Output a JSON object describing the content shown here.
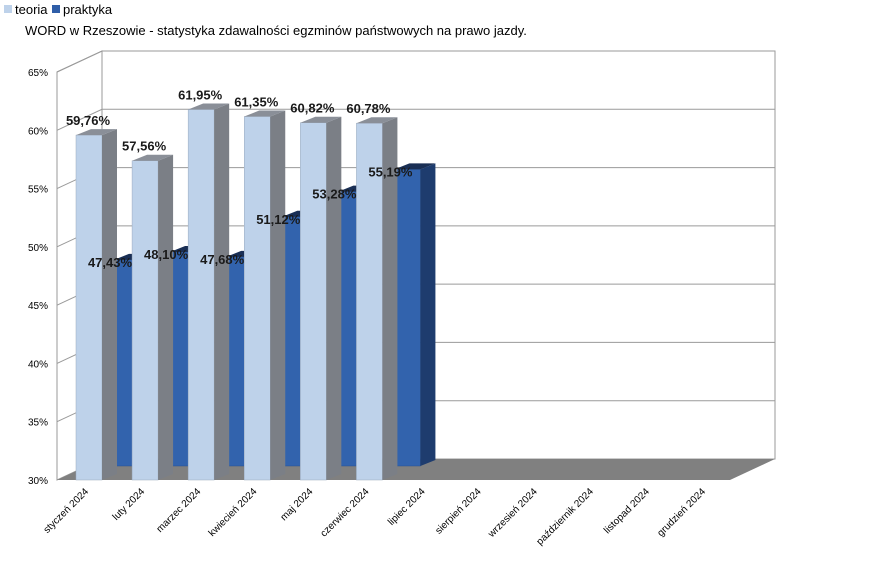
{
  "chart_data": {
    "type": "bar",
    "title": "WORD w Rzeszowie - statystyka zdawalności egzminów państwowych na prawo jazdy.",
    "categories": [
      "styczeń 2024",
      "luty 2024",
      "marzec 2024",
      "kwiecień 2024",
      "maj 2024",
      "czerwiec 2024",
      "lipiec 2024",
      "sierpień 2024",
      "wrzesień 2024",
      "październik 2024",
      "listopad 2024",
      "grudzień 2024"
    ],
    "series": [
      {
        "name": "teoria",
        "color": "#bed2ea",
        "values": [
          59.76,
          57.56,
          61.95,
          61.35,
          60.82,
          60.78,
          null,
          null,
          null,
          null,
          null,
          null
        ],
        "labels": [
          "59,76%",
          "57,56%",
          "61,95%",
          "61,35%",
          "60,82%",
          "60,78%"
        ]
      },
      {
        "name": "praktyka",
        "color": "#2f5ea8",
        "values": [
          47.43,
          48.1,
          47.68,
          51.12,
          53.28,
          55.19,
          null,
          null,
          null,
          null,
          null,
          null
        ],
        "labels": [
          "47,43%",
          "48,10%",
          "47,68%",
          "51,12%",
          "53,28%",
          "55,19%"
        ]
      }
    ],
    "yticks": [
      "30%",
      "35%",
      "40%",
      "45%",
      "50%",
      "55%",
      "60%",
      "65%"
    ],
    "ylim": [
      30,
      65
    ],
    "legend": "top-left",
    "grid": true
  }
}
